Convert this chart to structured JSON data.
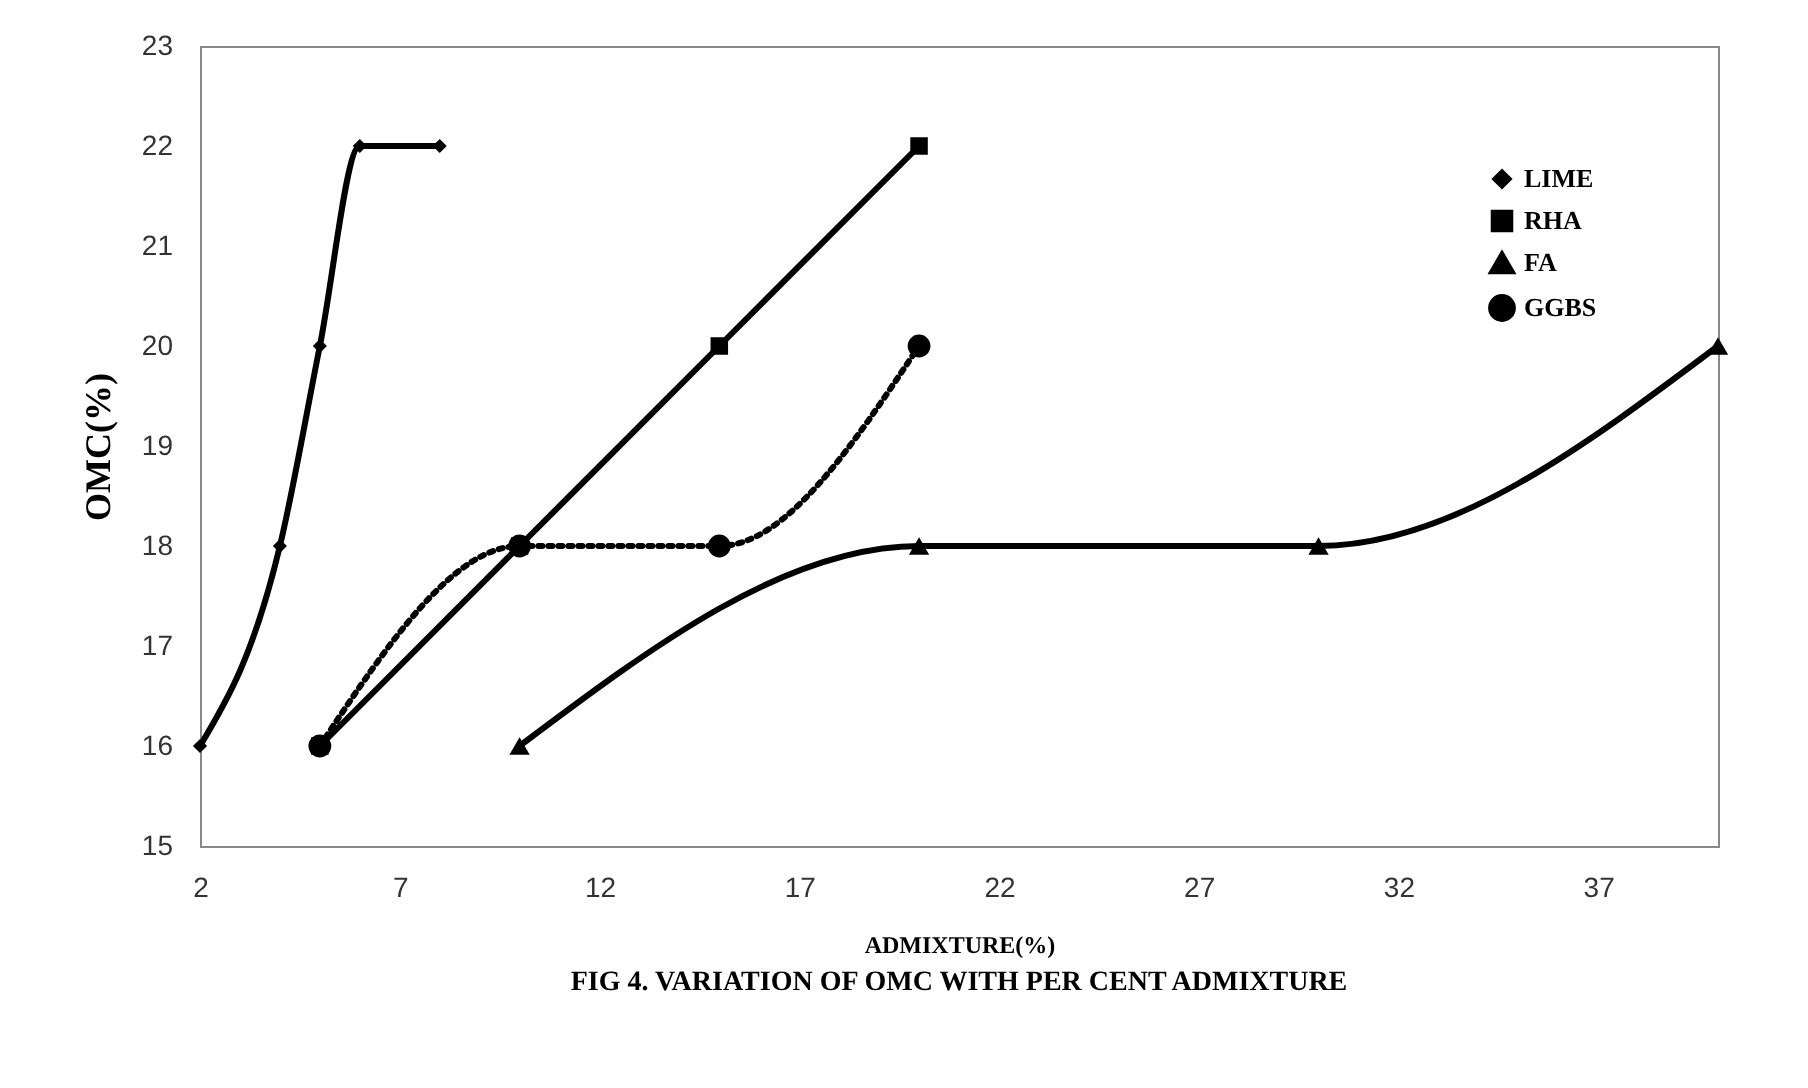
{
  "chart_data": {
    "type": "line",
    "title": "FIG 4. VARIATION OF OMC WITH PER CENT ADMIXTURE",
    "xlabel": "ADMIXTURE(%)",
    "ylabel": "OMC(%)",
    "xlim": [
      2,
      40
    ],
    "xticks": [
      2,
      7,
      12,
      17,
      22,
      27,
      32,
      37
    ],
    "ylim": [
      15,
      23
    ],
    "yticks": [
      15,
      16,
      17,
      18,
      19,
      20,
      21,
      22,
      23
    ],
    "legend": "top right",
    "series": [
      {
        "name": "LIME",
        "color": "#000000",
        "marker": "diamond",
        "line_style": "solid",
        "x": [
          2,
          4,
          5,
          6,
          8
        ],
        "values": [
          16,
          18,
          20,
          22,
          22
        ]
      },
      {
        "name": "RHA",
        "color": "#000000",
        "marker": "square",
        "line_style": "solid",
        "x": [
          5,
          10,
          15,
          20
        ],
        "values": [
          16,
          18,
          20,
          22
        ]
      },
      {
        "name": "FA",
        "color": "#000000",
        "marker": "triangle",
        "line_style": "solid",
        "x": [
          10,
          20,
          30,
          40
        ],
        "values": [
          16,
          18,
          18,
          20
        ]
      },
      {
        "name": "GGBS",
        "color": "#000000",
        "marker": "circle",
        "line_style": "dotted",
        "x": [
          5,
          10,
          15,
          20
        ],
        "values": [
          16,
          18,
          18,
          20
        ]
      }
    ]
  }
}
